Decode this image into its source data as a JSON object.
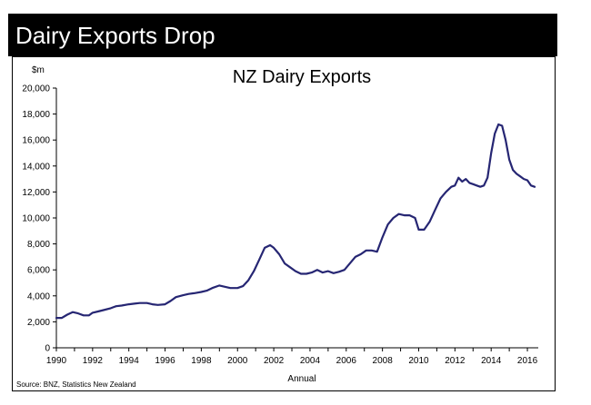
{
  "banner": {
    "title": "Dairy Exports Drop"
  },
  "source": "Source: BNZ, Statistics New Zealand",
  "colors": {
    "line": "#262673",
    "banner": "#000000"
  },
  "chart_data": {
    "type": "line",
    "title": "NZ Dairy Exports",
    "xlabel": "Annual",
    "ylabel": "$m",
    "xlim": [
      1990,
      2016.6
    ],
    "ylim": [
      0,
      20000
    ],
    "x_ticks": [
      "1990",
      "1992",
      "1994",
      "1996",
      "1998",
      "2000",
      "2002",
      "2004",
      "2006",
      "2008",
      "2010",
      "2012",
      "2014",
      "2016"
    ],
    "y_ticks": [
      "0",
      "2,000",
      "4,000",
      "6,000",
      "8,000",
      "10,000",
      "12,000",
      "14,000",
      "16,000",
      "18,000",
      "20,000"
    ],
    "grid": false,
    "series": [
      {
        "name": "NZ Dairy Exports",
        "x": [
          1990.0,
          1990.3,
          1990.6,
          1990.9,
          1991.2,
          1991.5,
          1991.8,
          1992.0,
          1992.3,
          1992.6,
          1993.0,
          1993.3,
          1993.6,
          1994.0,
          1994.3,
          1994.6,
          1995.0,
          1995.3,
          1995.6,
          1996.0,
          1996.3,
          1996.6,
          1997.0,
          1997.3,
          1997.6,
          1998.0,
          1998.3,
          1998.6,
          1999.0,
          1999.3,
          1999.6,
          2000.0,
          2000.3,
          2000.6,
          2000.9,
          2001.2,
          2001.5,
          2001.8,
          2002.0,
          2002.3,
          2002.6,
          2002.9,
          2003.2,
          2003.5,
          2003.8,
          2004.1,
          2004.4,
          2004.7,
          2005.0,
          2005.3,
          2005.6,
          2005.9,
          2006.2,
          2006.5,
          2006.8,
          2007.1,
          2007.4,
          2007.7,
          2008.0,
          2008.3,
          2008.6,
          2008.9,
          2009.2,
          2009.5,
          2009.8,
          2010.0,
          2010.3,
          2010.6,
          2010.9,
          2011.2,
          2011.5,
          2011.8,
          2012.0,
          2012.2,
          2012.4,
          2012.6,
          2012.8,
          2013.0,
          2013.2,
          2013.4,
          2013.6,
          2013.8,
          2014.0,
          2014.2,
          2014.4,
          2014.6,
          2014.8,
          2015.0,
          2015.2,
          2015.4,
          2015.6,
          2015.8,
          2016.0,
          2016.2,
          2016.4
        ],
        "values": [
          2300,
          2300,
          2550,
          2750,
          2650,
          2500,
          2500,
          2700,
          2800,
          2900,
          3050,
          3200,
          3250,
          3350,
          3400,
          3450,
          3450,
          3350,
          3300,
          3350,
          3600,
          3900,
          4050,
          4150,
          4200,
          4300,
          4400,
          4600,
          4800,
          4700,
          4600,
          4600,
          4750,
          5200,
          5900,
          6800,
          7700,
          7900,
          7700,
          7200,
          6500,
          6200,
          5900,
          5700,
          5700,
          5800,
          6000,
          5800,
          5900,
          5750,
          5850,
          6000,
          6500,
          7000,
          7200,
          7500,
          7500,
          7400,
          8500,
          9500,
          10000,
          10300,
          10200,
          10200,
          10000,
          9100,
          9100,
          9700,
          10600,
          11500,
          12000,
          12400,
          12500,
          13100,
          12800,
          13000,
          12700,
          12600,
          12500,
          12400,
          12500,
          13100,
          15000,
          16500,
          17200,
          17100,
          16000,
          14500,
          13700,
          13400,
          13200,
          13000,
          12900,
          12500,
          12400
        ]
      }
    ]
  }
}
